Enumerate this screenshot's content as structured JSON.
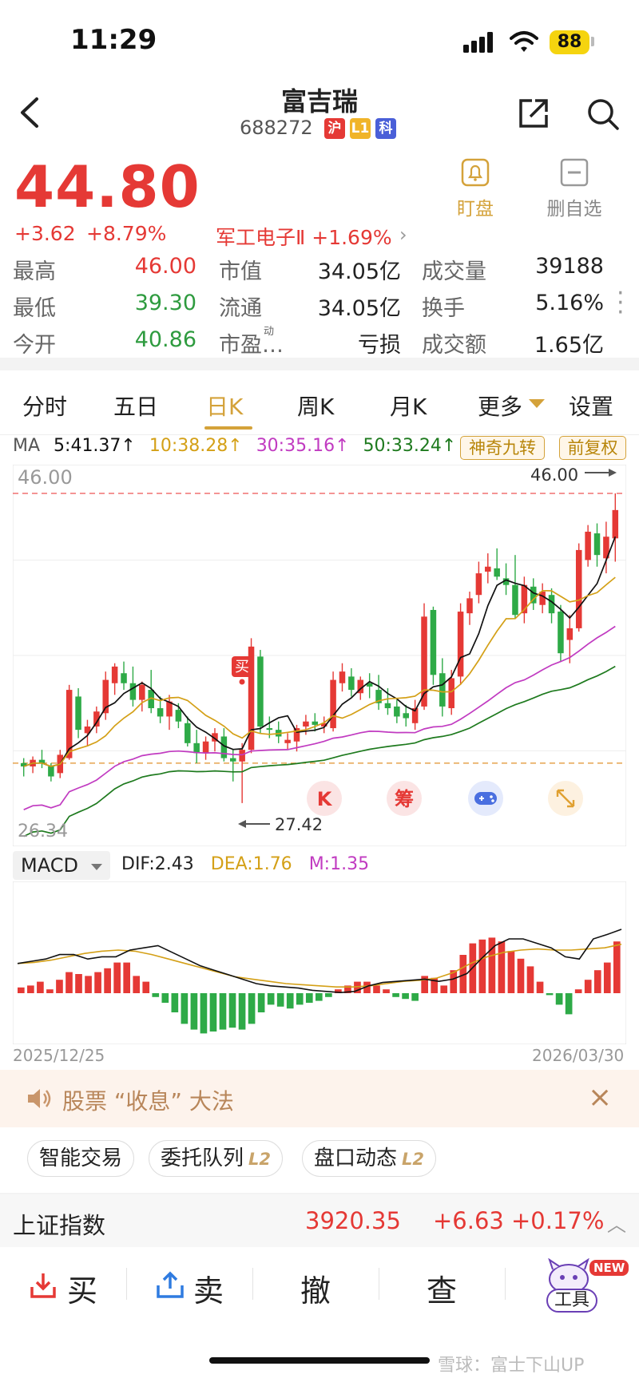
{
  "status_bar": {
    "time": "11:29",
    "battery": "88"
  },
  "header": {
    "name": "富吉瑞",
    "code": "688272",
    "tags": [
      {
        "text": "沪",
        "color": "#e53935"
      },
      {
        "text": "L1",
        "color": "#f0b429"
      },
      {
        "text": "科",
        "color": "#4a5fd8"
      }
    ]
  },
  "quote": {
    "price": "44.80",
    "change": "+3.62",
    "change_pct": "+8.79%",
    "sector": "军工电子Ⅱ +1.69%",
    "watch_label": "盯盘",
    "remove_label": "删自选"
  },
  "stats": [
    {
      "label": "最高",
      "value": "46.00",
      "color": "red"
    },
    {
      "label": "市值",
      "value": "34.05亿",
      "color": "dark"
    },
    {
      "label": "成交量",
      "value": "39188",
      "color": "dark"
    },
    {
      "label": "最低",
      "value": "39.30",
      "color": "green"
    },
    {
      "label": "流通",
      "value": "34.05亿",
      "color": "dark"
    },
    {
      "label": "换手",
      "value": "5.16%",
      "color": "dark"
    },
    {
      "label": "今开",
      "value": "40.86",
      "color": "green"
    },
    {
      "label": "市盈…",
      "value": "亏损",
      "color": "dark"
    },
    {
      "label": "成交额",
      "value": "1.65亿",
      "color": "dark"
    }
  ],
  "pe_superscript": "动",
  "tabs": [
    "分时",
    "五日",
    "日K",
    "周K",
    "月K",
    "更多",
    "设置"
  ],
  "ma": {
    "label": "MA",
    "ma5": "5:41.37↑",
    "ma10": "10:38.28↑",
    "ma30": "30:35.16↑",
    "ma50": "50:33.24↑",
    "colors": {
      "ma5": "#111111",
      "ma10": "#d4a017",
      "ma30": "#c13bc1",
      "ma50": "#1e7a1e"
    }
  },
  "buttons": {
    "nine_turn": "神奇九转",
    "adjust": "前复权"
  },
  "kline": {
    "high_label": "46.00",
    "high_marker": "46.00",
    "low_axis": "26.34",
    "low_marker": "27.42",
    "buy_tag": "买",
    "float_k": "K",
    "float_chip": "筹"
  },
  "macd": {
    "label": "MACD",
    "dif": "DIF:2.43",
    "dea": "DEA:1.76",
    "m": "M:1.35"
  },
  "dates": {
    "start": "2025/12/25",
    "end": "2026/03/30"
  },
  "banner": {
    "text": "股票 “收息” 大法",
    "close": "×"
  },
  "chips": [
    {
      "text": "智能交易",
      "l2": ""
    },
    {
      "text": "委托队列",
      "l2": "L2"
    },
    {
      "text": "盘口动态",
      "l2": "L2"
    }
  ],
  "index": {
    "name": "上证指数",
    "value": "3920.35",
    "change": "+6.63",
    "pct": "+0.17%"
  },
  "bottom_bar": {
    "buy": "买",
    "sell": "卖",
    "cancel": "撤",
    "query": "查",
    "tools": "工具",
    "new_badge": "NEW"
  },
  "watermark": "雪球：富士下山UP",
  "chart_data": {
    "type": "candlestick",
    "period": "daily",
    "x_start": "2025/12/25",
    "x_end": "2026/03/30",
    "y_range": [
      26.34,
      46.0
    ],
    "candles": [
      [
        29.8,
        30.1,
        29.0,
        29.6
      ],
      [
        29.6,
        30.2,
        29.2,
        30.0
      ],
      [
        30.0,
        30.6,
        29.5,
        29.8
      ],
      [
        29.6,
        29.8,
        28.7,
        29.0
      ],
      [
        29.2,
        30.6,
        28.9,
        30.3
      ],
      [
        30.1,
        34.5,
        30.0,
        34.2
      ],
      [
        33.8,
        34.3,
        31.3,
        31.8
      ],
      [
        31.6,
        32.4,
        30.8,
        32.0
      ],
      [
        32.0,
        33.2,
        31.6,
        32.9
      ],
      [
        32.8,
        35.3,
        32.4,
        34.8
      ],
      [
        34.6,
        35.8,
        33.9,
        35.6
      ],
      [
        35.2,
        35.9,
        34.2,
        34.6
      ],
      [
        34.6,
        35.6,
        33.2,
        33.6
      ],
      [
        33.6,
        34.7,
        32.9,
        34.5
      ],
      [
        34.2,
        35.4,
        32.8,
        33.1
      ],
      [
        33.1,
        33.8,
        32.2,
        32.6
      ],
      [
        32.6,
        33.9,
        31.8,
        33.5
      ],
      [
        33.0,
        33.4,
        31.9,
        32.3
      ],
      [
        32.2,
        32.6,
        30.8,
        31.0
      ],
      [
        31.0,
        31.8,
        29.8,
        30.4
      ],
      [
        30.4,
        31.4,
        30.0,
        31.1
      ],
      [
        31.1,
        31.9,
        30.5,
        31.6
      ],
      [
        31.4,
        31.9,
        29.9,
        30.1
      ],
      [
        30.1,
        30.6,
        28.7,
        29.9
      ],
      [
        29.9,
        31.0,
        27.4,
        30.6
      ],
      [
        30.6,
        37.3,
        30.4,
        36.8
      ],
      [
        36.2,
        36.6,
        31.6,
        32.0
      ],
      [
        31.9,
        32.6,
        31.3,
        31.8
      ],
      [
        31.8,
        32.3,
        31.0,
        31.4
      ],
      [
        31.0,
        31.6,
        30.6,
        31.2
      ],
      [
        31.1,
        32.1,
        30.5,
        31.9
      ],
      [
        32.0,
        32.7,
        31.5,
        32.3
      ],
      [
        32.3,
        32.8,
        31.7,
        32.1
      ],
      [
        32.0,
        32.6,
        31.6,
        32.2
      ],
      [
        31.9,
        35.3,
        31.7,
        34.8
      ],
      [
        34.6,
        35.8,
        34.1,
        35.3
      ],
      [
        35.0,
        35.5,
        33.8,
        34.2
      ],
      [
        34.0,
        35.0,
        33.6,
        34.8
      ],
      [
        34.6,
        35.2,
        33.7,
        34.4
      ],
      [
        34.2,
        35.1,
        33.0,
        33.4
      ],
      [
        33.4,
        34.3,
        32.7,
        33.1
      ],
      [
        33.2,
        33.6,
        32.2,
        32.6
      ],
      [
        32.8,
        33.3,
        32.0,
        32.5
      ],
      [
        32.2,
        33.6,
        31.8,
        33.1
      ],
      [
        33.2,
        39.4,
        33.0,
        38.6
      ],
      [
        39.0,
        39.2,
        34.5,
        35.1
      ],
      [
        35.2,
        36.1,
        32.6,
        33.2
      ],
      [
        33.1,
        35.4,
        32.7,
        34.9
      ],
      [
        35.0,
        39.4,
        34.5,
        38.9
      ],
      [
        38.8,
        40.1,
        38.1,
        39.7
      ],
      [
        39.9,
        41.9,
        39.4,
        41.2
      ],
      [
        41.3,
        42.4,
        40.6,
        41.6
      ],
      [
        41.5,
        42.7,
        40.8,
        41.0
      ],
      [
        40.9,
        41.8,
        39.9,
        40.5
      ],
      [
        40.5,
        42.3,
        38.5,
        38.7
      ],
      [
        38.8,
        41.0,
        38.2,
        40.5
      ],
      [
        40.4,
        40.9,
        39.0,
        39.4
      ],
      [
        39.3,
        40.6,
        38.8,
        40.1
      ],
      [
        39.9,
        40.3,
        38.2,
        38.8
      ],
      [
        38.9,
        39.3,
        35.9,
        36.4
      ],
      [
        37.2,
        38.7,
        35.8,
        37.9
      ],
      [
        37.9,
        43.0,
        37.7,
        42.6
      ],
      [
        42.0,
        44.1,
        41.6,
        43.7
      ],
      [
        43.6,
        44.2,
        41.6,
        42.3
      ],
      [
        42.1,
        44.3,
        41.2,
        43.4
      ],
      [
        43.3,
        46.0,
        41.9,
        45.0
      ]
    ],
    "macd": {
      "bars": [
        0.15,
        0.2,
        0.3,
        0.1,
        0.35,
        0.55,
        0.5,
        0.45,
        0.55,
        0.65,
        0.8,
        0.8,
        0.45,
        0.3,
        -0.1,
        -0.25,
        -0.5,
        -0.8,
        -0.95,
        -1.05,
        -1.0,
        -0.95,
        -0.9,
        -0.95,
        -0.8,
        -0.5,
        -0.3,
        -0.35,
        -0.4,
        -0.3,
        -0.25,
        -0.2,
        -0.1,
        0.1,
        0.2,
        0.3,
        0.3,
        0.2,
        0.1,
        -0.1,
        -0.15,
        -0.2,
        0.45,
        0.4,
        0.2,
        0.6,
        1.0,
        1.3,
        1.4,
        1.45,
        1.35,
        1.1,
        0.9,
        0.7,
        0.3,
        -0.05,
        -0.3,
        -0.55,
        0.1,
        0.35,
        0.6,
        0.8,
        1.35
      ],
      "dif": [
        0.9,
        1.0,
        1.1,
        1.3,
        1.3,
        1.1,
        1.2,
        1.2,
        1.5,
        1.6,
        1.7,
        1.4,
        1.1,
        0.8,
        0.6,
        0.4,
        0.2,
        0.0,
        -0.1,
        -0.15,
        -0.2,
        -0.3,
        -0.35,
        -0.4,
        -0.35,
        -0.1,
        0.05,
        0.1,
        0.15,
        0.2,
        0.1,
        0.2,
        0.45,
        1.1,
        1.7,
        2.0,
        2.0,
        1.8,
        1.6,
        1.2,
        1.1,
        2.0,
        2.2,
        2.43
      ],
      "dea": [
        0.9,
        0.95,
        1.05,
        1.2,
        1.35,
        1.45,
        1.5,
        1.45,
        1.3,
        1.1,
        0.9,
        0.7,
        0.5,
        0.3,
        0.2,
        0.1,
        0.0,
        -0.05,
        -0.1,
        -0.15,
        -0.15,
        -0.1,
        0.0,
        0.1,
        0.15,
        0.25,
        0.5,
        0.9,
        1.2,
        1.4,
        1.5,
        1.55,
        1.5,
        1.5,
        1.55,
        1.6,
        1.76
      ]
    }
  }
}
